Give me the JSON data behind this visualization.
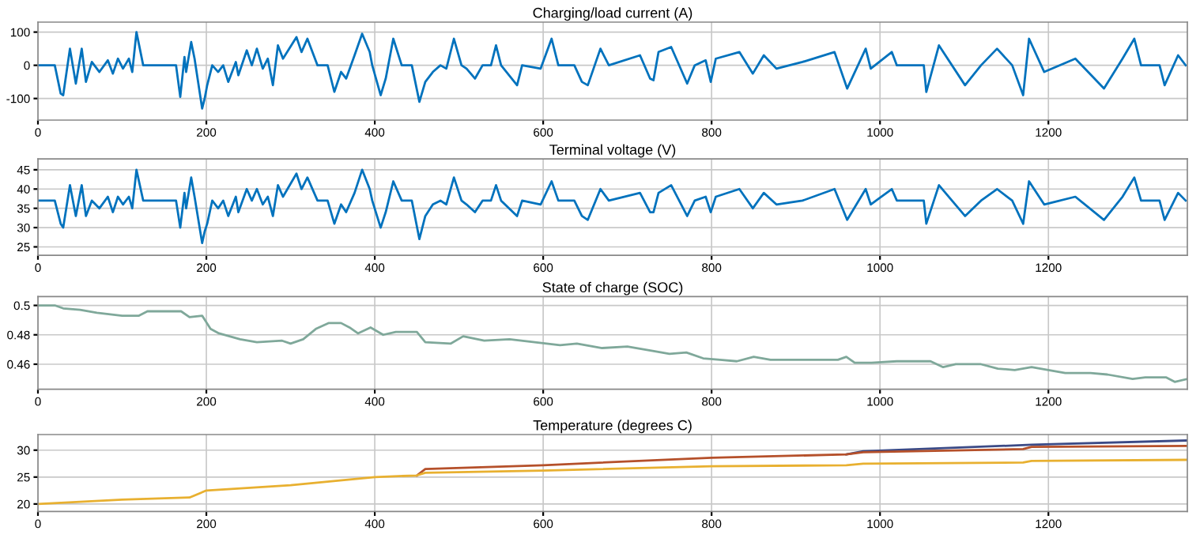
{
  "chart_data": [
    {
      "type": "line",
      "title": "Charging/load current (A)",
      "xlim": [
        0,
        1365
      ],
      "xticks": [
        0,
        200,
        400,
        600,
        800,
        1000,
        1200
      ],
      "ylim": [
        -165,
        130
      ],
      "yticks": [
        -100,
        0,
        100
      ],
      "grid": true,
      "series": [
        {
          "color": "#0072bd",
          "x": [
            0,
            20,
            27,
            30,
            38,
            45,
            52,
            57,
            64,
            73,
            83,
            89,
            95,
            101,
            108,
            112,
            117,
            125,
            164,
            169,
            174,
            176,
            182,
            186,
            195,
            198,
            201,
            207,
            214,
            220,
            226,
            235,
            238,
            248,
            254,
            260,
            267,
            273,
            279,
            285,
            291,
            307,
            313,
            320,
            332,
            344,
            352,
            360,
            366,
            376,
            385,
            394,
            397,
            407,
            413,
            422,
            432,
            444,
            453,
            460,
            469,
            478,
            485,
            494,
            503,
            509,
            519,
            528,
            538,
            544,
            550,
            569,
            575,
            597,
            610,
            618,
            637,
            646,
            653,
            668,
            678,
            715,
            727,
            731,
            737,
            752,
            771,
            780,
            793,
            799,
            805,
            833,
            849,
            862,
            877,
            908,
            946,
            961,
            983,
            989,
            1014,
            1020,
            1052,
            1055,
            1070,
            1101,
            1120,
            1139,
            1157,
            1170,
            1177,
            1195,
            1232,
            1266,
            1288,
            1302,
            1310,
            1332,
            1338,
            1354,
            1363
          ],
          "values": [
            0,
            0,
            -85,
            -90,
            50,
            -55,
            50,
            -50,
            10,
            -20,
            15,
            -25,
            20,
            -10,
            20,
            -20,
            100,
            0,
            0,
            -95,
            25,
            -20,
            70,
            20,
            -130,
            -100,
            -60,
            0,
            -20,
            0,
            -50,
            10,
            -30,
            45,
            0,
            50,
            -10,
            20,
            -60,
            60,
            20,
            85,
            40,
            80,
            0,
            0,
            -80,
            -20,
            -40,
            30,
            95,
            40,
            0,
            -90,
            -40,
            80,
            0,
            0,
            -110,
            -50,
            -20,
            0,
            -10,
            80,
            0,
            -10,
            -40,
            0,
            0,
            60,
            0,
            -60,
            0,
            -10,
            80,
            0,
            0,
            -50,
            -60,
            50,
            0,
            30,
            -40,
            -45,
            40,
            55,
            -55,
            0,
            15,
            -50,
            20,
            40,
            -25,
            30,
            -10,
            10,
            40,
            -70,
            50,
            -10,
            40,
            0,
            0,
            -80,
            60,
            -60,
            0,
            50,
            0,
            -90,
            80,
            -20,
            20,
            -70,
            20,
            80,
            0,
            0,
            -60,
            30,
            0
          ]
        }
      ]
    },
    {
      "type": "line",
      "title": "Terminal voltage (V)",
      "xlim": [
        0,
        1365
      ],
      "xticks": [
        0,
        200,
        400,
        600,
        800,
        1000,
        1200
      ],
      "ylim": [
        22.8,
        47.8
      ],
      "yticks": [
        25,
        30,
        35,
        40,
        45
      ],
      "grid": true,
      "series": [
        {
          "color": "#0072bd",
          "x": [
            0,
            20,
            27,
            30,
            38,
            45,
            52,
            57,
            64,
            73,
            83,
            89,
            95,
            101,
            108,
            112,
            117,
            125,
            164,
            169,
            174,
            176,
            182,
            186,
            195,
            198,
            201,
            207,
            214,
            220,
            226,
            235,
            238,
            248,
            254,
            260,
            267,
            273,
            279,
            285,
            291,
            307,
            313,
            320,
            332,
            344,
            352,
            360,
            366,
            376,
            385,
            394,
            397,
            407,
            413,
            422,
            432,
            444,
            453,
            460,
            469,
            478,
            485,
            494,
            503,
            509,
            519,
            528,
            538,
            544,
            550,
            569,
            575,
            597,
            610,
            618,
            637,
            646,
            653,
            668,
            678,
            715,
            727,
            731,
            737,
            752,
            771,
            780,
            793,
            799,
            805,
            833,
            849,
            862,
            877,
            908,
            946,
            961,
            983,
            989,
            1014,
            1020,
            1052,
            1055,
            1070,
            1101,
            1120,
            1139,
            1157,
            1170,
            1177,
            1195,
            1232,
            1266,
            1288,
            1302,
            1310,
            1332,
            1338,
            1354,
            1363
          ],
          "values": [
            37,
            37,
            31,
            30,
            41,
            33,
            41,
            33,
            37,
            35,
            38,
            34,
            38,
            36,
            38,
            35,
            45,
            37,
            37,
            30,
            39,
            35,
            43,
            38,
            26,
            29,
            31,
            37,
            35,
            37,
            33,
            38,
            34,
            40,
            37,
            40,
            36,
            38,
            33,
            41,
            38,
            44,
            40,
            43,
            37,
            37,
            31,
            36,
            34,
            39,
            45,
            40,
            37,
            30,
            34,
            42,
            37,
            37,
            27,
            33,
            36,
            37,
            36,
            43,
            37,
            36,
            34,
            37,
            37,
            41,
            37,
            33,
            37,
            36,
            42,
            37,
            37,
            33,
            32,
            40,
            37,
            39,
            34,
            34,
            39,
            41,
            33,
            37,
            38,
            34,
            38,
            40,
            35,
            39,
            36,
            37,
            40,
            32,
            40,
            36,
            40,
            37,
            37,
            31,
            41,
            33,
            37,
            40,
            37,
            31,
            42,
            36,
            38,
            32,
            38,
            43,
            37,
            37,
            32,
            39,
            37
          ]
        }
      ]
    },
    {
      "type": "line",
      "title": "State of charge (SOC)",
      "xlim": [
        0,
        1365
      ],
      "xticks": [
        0,
        200,
        400,
        600,
        800,
        1000,
        1200
      ],
      "ylim": [
        0.443,
        0.506
      ],
      "yticks": [
        0.46,
        0.48,
        {
          "value": 0.5,
          "label": "0.5"
        }
      ],
      "grid": true,
      "series": [
        {
          "color": "#7fa89a",
          "x": [
            0,
            20,
            30,
            50,
            70,
            100,
            120,
            130,
            170,
            180,
            195,
            205,
            215,
            240,
            260,
            290,
            300,
            315,
            330,
            345,
            360,
            370,
            380,
            395,
            410,
            425,
            450,
            460,
            490,
            505,
            530,
            560,
            590,
            620,
            640,
            670,
            700,
            730,
            750,
            770,
            790,
            810,
            830,
            850,
            870,
            920,
            950,
            960,
            970,
            990,
            1020,
            1060,
            1075,
            1090,
            1120,
            1140,
            1160,
            1180,
            1200,
            1220,
            1250,
            1270,
            1300,
            1315,
            1340,
            1350,
            1365
          ],
          "values": [
            0.5,
            0.5,
            0.498,
            0.497,
            0.495,
            0.493,
            0.493,
            0.496,
            0.496,
            0.492,
            0.493,
            0.484,
            0.481,
            0.477,
            0.475,
            0.476,
            0.474,
            0.477,
            0.484,
            0.488,
            0.488,
            0.485,
            0.481,
            0.485,
            0.48,
            0.482,
            0.482,
            0.475,
            0.474,
            0.479,
            0.476,
            0.477,
            0.475,
            0.473,
            0.474,
            0.471,
            0.472,
            0.469,
            0.467,
            0.468,
            0.464,
            0.463,
            0.462,
            0.465,
            0.463,
            0.463,
            0.463,
            0.465,
            0.461,
            0.461,
            0.462,
            0.462,
            0.458,
            0.46,
            0.46,
            0.457,
            0.456,
            0.458,
            0.456,
            0.454,
            0.454,
            0.453,
            0.45,
            0.451,
            0.451,
            0.448,
            0.45
          ]
        }
      ]
    },
    {
      "type": "line",
      "title": "Temperature (degrees C)",
      "xlim": [
        0,
        1365
      ],
      "xticks": [
        0,
        200,
        400,
        600,
        800,
        1000,
        1200
      ],
      "ylim": [
        18.6,
        32.9
      ],
      "yticks": [
        20,
        25,
        30
      ],
      "grid": true,
      "series": [
        {
          "color": "#3b4a86",
          "x": [
            960,
            980,
            1180,
            1365
          ],
          "values": [
            29.2,
            29.8,
            31,
            31.8
          ]
        },
        {
          "color": "#b5502a",
          "x": [
            450,
            460,
            600,
            800,
            960,
            980,
            1170,
            1180,
            1365
          ],
          "values": [
            25.3,
            26.5,
            27.2,
            28.6,
            29.2,
            29.6,
            30.2,
            30.6,
            30.8
          ]
        },
        {
          "color": "#e8b030",
          "x": [
            0,
            100,
            180,
            200,
            300,
            400,
            450,
            460,
            600,
            800,
            960,
            980,
            1170,
            1180,
            1365
          ],
          "values": [
            20,
            20.8,
            21.2,
            22.5,
            23.5,
            25,
            25.3,
            25.8,
            26.2,
            27,
            27.2,
            27.5,
            27.7,
            28,
            28.2
          ]
        }
      ]
    }
  ]
}
